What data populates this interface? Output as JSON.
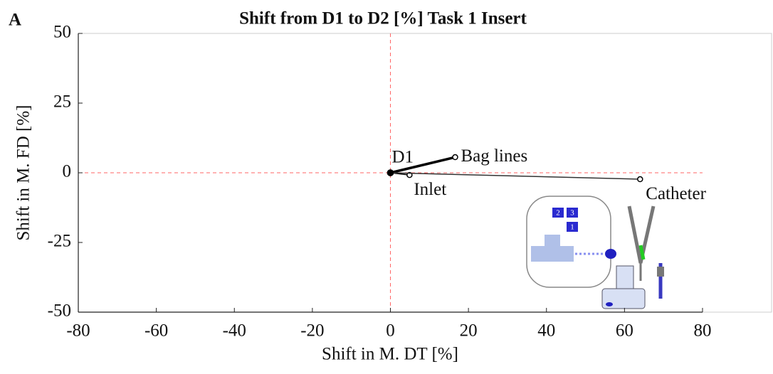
{
  "chart_data": {
    "type": "line",
    "panel_label": "A",
    "title": "Shift from D1 to D2 [%] Task 1 Insert",
    "x_label": "Shift in M. DT [%]",
    "y_label": "Shift in M. FD [%]",
    "origin_label": "D1",
    "series": [
      {
        "name": "Bag lines",
        "color": "#000000",
        "line_width": 3.5,
        "x": [
          0,
          16.6
        ],
        "values": [
          0,
          5.6
        ]
      },
      {
        "name": "Inlet",
        "color": "#000000",
        "line_width": 1.5,
        "x": [
          0,
          4.9
        ],
        "values": [
          0,
          -0.8
        ]
      },
      {
        "name": "Catheter",
        "color": "#333333",
        "line_width": 1.5,
        "x": [
          0,
          64
        ],
        "values": [
          0,
          -2.3
        ]
      }
    ],
    "xlim": [
      -80,
      97.7
    ],
    "xticks": [
      -80,
      -60,
      -40,
      -20,
      0,
      20,
      40,
      60,
      80
    ],
    "ylim": [
      -50,
      50
    ],
    "yticks": [
      -50,
      -25,
      0,
      25,
      50
    ],
    "ref_lines": {
      "x": 0,
      "y": 0,
      "color": "#ff6666"
    },
    "illustration": {
      "labels": [
        "2",
        "3",
        "1"
      ]
    }
  }
}
